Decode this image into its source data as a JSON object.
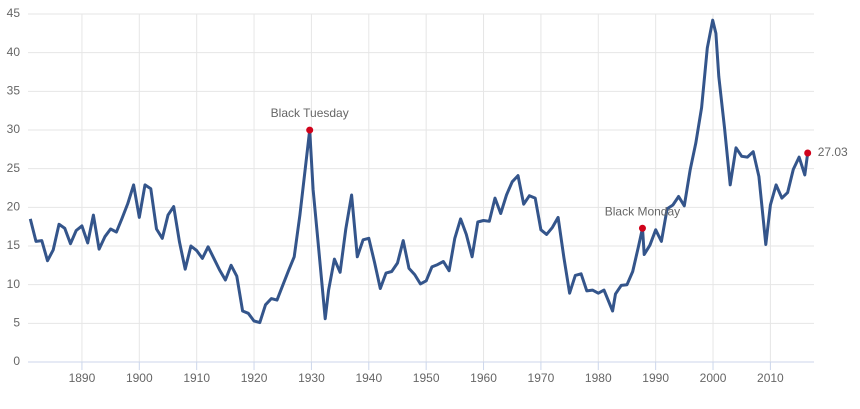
{
  "chart_data": {
    "type": "line",
    "color": "#34558b",
    "marker_color": "#d0021b",
    "grid": true,
    "x": [
      1881,
      1882,
      1883,
      1884,
      1885,
      1886,
      1887,
      1888,
      1889,
      1890,
      1891,
      1892,
      1893,
      1894,
      1895,
      1896,
      1897,
      1898,
      1899,
      1900,
      1901,
      1902,
      1903,
      1904,
      1905,
      1906,
      1907,
      1908,
      1909,
      1910,
      1911,
      1912,
      1913,
      1914,
      1915,
      1916,
      1917,
      1918,
      1919,
      1920,
      1921,
      1922,
      1923,
      1924,
      1925,
      1926,
      1927,
      1928,
      1929.7,
      1930.3,
      1931,
      1932.4,
      1933,
      1934,
      1935,
      1936,
      1937,
      1938,
      1939,
      1940,
      1941,
      1942,
      1943,
      1944,
      1945,
      1946,
      1947,
      1948,
      1949,
      1950,
      1951,
      1952,
      1953,
      1954,
      1955,
      1956,
      1957,
      1958,
      1959,
      1960,
      1961,
      1962,
      1963,
      1964,
      1965,
      1966,
      1967,
      1968,
      1969,
      1970,
      1971,
      1972,
      1973,
      1974,
      1975,
      1976,
      1977,
      1978,
      1979,
      1980,
      1981,
      1982.5,
      1983,
      1984,
      1985,
      1986,
      1987,
      1987.7,
      1988,
      1989,
      1990,
      1991,
      1992,
      1993,
      1994,
      1995,
      1996,
      1997,
      1998,
      1999,
      1999.95,
      2000.5,
      2001,
      2002,
      2003,
      2004,
      2005,
      2006,
      2007,
      2008,
      2009.2,
      2010,
      2011,
      2012,
      2013,
      2014,
      2015,
      2016,
      2016.5
    ],
    "values": [
      18.5,
      15.6,
      15.7,
      13.1,
      14.5,
      17.8,
      17.3,
      15.3,
      17.0,
      17.6,
      15.4,
      19.0,
      14.6,
      16.2,
      17.2,
      16.8,
      18.6,
      20.5,
      22.9,
      18.7,
      22.9,
      22.4,
      17.2,
      16.0,
      19.0,
      20.1,
      15.5,
      12.0,
      15.0,
      14.4,
      13.4,
      14.9,
      13.4,
      11.9,
      10.6,
      12.5,
      11.1,
      6.6,
      6.3,
      5.3,
      5.1,
      7.4,
      8.2,
      8.0,
      9.9,
      11.8,
      13.6,
      19.0,
      29.99,
      22.3,
      16.7,
      5.6,
      9.3,
      13.3,
      11.6,
      17.2,
      21.6,
      13.6,
      15.8,
      16.0,
      12.9,
      9.5,
      11.5,
      11.7,
      12.8,
      15.7,
      12.1,
      11.3,
      10.1,
      10.5,
      12.3,
      12.6,
      13.0,
      11.8,
      16.0,
      18.5,
      16.5,
      13.6,
      18.1,
      18.3,
      18.2,
      21.2,
      19.2,
      21.6,
      23.3,
      24.1,
      20.4,
      21.5,
      21.2,
      17.1,
      16.5,
      17.4,
      18.7,
      13.5,
      8.9,
      11.2,
      11.4,
      9.2,
      9.3,
      8.9,
      9.3,
      6.6,
      8.8,
      9.9,
      10.0,
      11.7,
      14.9,
      17.3,
      13.9,
      15.1,
      17.1,
      15.6,
      19.8,
      20.3,
      21.4,
      20.2,
      24.8,
      28.3,
      32.9,
      40.6,
      44.2,
      42.5,
      36.9,
      30.3,
      22.9,
      27.7,
      26.6,
      26.5,
      27.2,
      24.0,
      15.2,
      20.3,
      22.9,
      21.2,
      21.9,
      24.9,
      26.5,
      24.2,
      27.03
    ],
    "xlim": [
      1880.6,
      2017.6
    ],
    "ylim": [
      0,
      45
    ],
    "xticks": [
      1890,
      1900,
      1910,
      1920,
      1930,
      1940,
      1950,
      1960,
      1970,
      1980,
      1990,
      2000,
      2010
    ],
    "yticks": [
      0,
      5,
      10,
      15,
      20,
      25,
      30,
      35,
      40,
      45
    ],
    "annotations": [
      {
        "text": "Black Tuesday",
        "x": 1929.7,
        "y": 29.99
      },
      {
        "text": "Black Monday",
        "x": 1987.7,
        "y": 17.3
      },
      {
        "text": "27.03",
        "x": 2016.5,
        "y": 27.03
      }
    ]
  }
}
